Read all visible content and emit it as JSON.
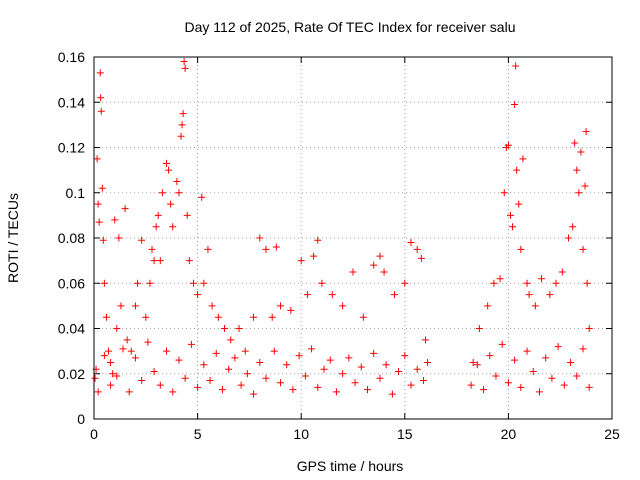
{
  "chart_data": {
    "type": "scatter",
    "title": "Day 112 of 2025, Rate Of TEC Index for receiver salu",
    "xlabel": "GPS time / hours",
    "ylabel": "ROTI / TECUs",
    "xlim": [
      0,
      25
    ],
    "ylim": [
      0,
      0.16
    ],
    "xticks": [
      0,
      5,
      10,
      15,
      20,
      25
    ],
    "xtick_labels": [
      "0",
      "5",
      "10",
      "15",
      "20",
      "25"
    ],
    "yticks": [
      0,
      0.02,
      0.04,
      0.06,
      0.08,
      0.1,
      0.12,
      0.14,
      0.16
    ],
    "ytick_labels": [
      "0",
      "0.02",
      "0.04",
      "0.06",
      "0.08",
      "0.1",
      "0.12",
      "0.14",
      "0.16"
    ],
    "grid": true,
    "marker": "plus",
    "color": "#ff0000",
    "series": [
      {
        "name": "ROTI",
        "points": [
          [
            0.05,
            0.018
          ],
          [
            0.1,
            0.022
          ],
          [
            0.15,
            0.115
          ],
          [
            0.2,
            0.095
          ],
          [
            0.25,
            0.087
          ],
          [
            0.3,
            0.153
          ],
          [
            0.32,
            0.142
          ],
          [
            0.35,
            0.136
          ],
          [
            0.4,
            0.102
          ],
          [
            0.45,
            0.079
          ],
          [
            0.5,
            0.06
          ],
          [
            0.6,
            0.045
          ],
          [
            0.7,
            0.03
          ],
          [
            0.8,
            0.025
          ],
          [
            0.9,
            0.02
          ],
          [
            1.0,
            0.088
          ],
          [
            1.1,
            0.04
          ],
          [
            1.2,
            0.08
          ],
          [
            1.3,
            0.05
          ],
          [
            1.5,
            0.093
          ],
          [
            1.6,
            0.035
          ],
          [
            1.8,
            0.03
          ],
          [
            2.0,
            0.05
          ],
          [
            2.1,
            0.06
          ],
          [
            2.3,
            0.079
          ],
          [
            2.5,
            0.045
          ],
          [
            2.7,
            0.06
          ],
          [
            2.8,
            0.075
          ],
          [
            2.9,
            0.07
          ],
          [
            3.0,
            0.085
          ],
          [
            3.1,
            0.09
          ],
          [
            3.2,
            0.07
          ],
          [
            3.3,
            0.1
          ],
          [
            3.5,
            0.113
          ],
          [
            3.6,
            0.11
          ],
          [
            3.7,
            0.095
          ],
          [
            3.8,
            0.085
          ],
          [
            4.0,
            0.105
          ],
          [
            4.1,
            0.1
          ],
          [
            4.2,
            0.125
          ],
          [
            4.25,
            0.13
          ],
          [
            4.3,
            0.135
          ],
          [
            4.35,
            0.158
          ],
          [
            4.4,
            0.155
          ],
          [
            4.5,
            0.09
          ],
          [
            4.6,
            0.07
          ],
          [
            4.8,
            0.06
          ],
          [
            5.0,
            0.055
          ],
          [
            5.2,
            0.098
          ],
          [
            5.3,
            0.06
          ],
          [
            5.5,
            0.075
          ],
          [
            5.7,
            0.05
          ],
          [
            6.0,
            0.045
          ],
          [
            6.3,
            0.04
          ],
          [
            6.6,
            0.035
          ],
          [
            7.0,
            0.04
          ],
          [
            7.3,
            0.03
          ],
          [
            7.7,
            0.045
          ],
          [
            8.0,
            0.08
          ],
          [
            8.3,
            0.075
          ],
          [
            8.6,
            0.045
          ],
          [
            8.8,
            0.076
          ],
          [
            9.0,
            0.05
          ],
          [
            9.5,
            0.048
          ],
          [
            10.0,
            0.07
          ],
          [
            10.3,
            0.055
          ],
          [
            10.6,
            0.072
          ],
          [
            10.8,
            0.079
          ],
          [
            11.0,
            0.06
          ],
          [
            11.5,
            0.055
          ],
          [
            12.0,
            0.05
          ],
          [
            12.5,
            0.065
          ],
          [
            13.0,
            0.045
          ],
          [
            13.5,
            0.068
          ],
          [
            13.8,
            0.072
          ],
          [
            14.0,
            0.065
          ],
          [
            14.5,
            0.055
          ],
          [
            15.0,
            0.06
          ],
          [
            15.3,
            0.078
          ],
          [
            15.6,
            0.075
          ],
          [
            15.8,
            0.071
          ],
          [
            16.0,
            0.035
          ],
          [
            16.1,
            0.025
          ],
          [
            18.3,
            0.025
          ],
          [
            18.6,
            0.04
          ],
          [
            19.0,
            0.05
          ],
          [
            19.3,
            0.06
          ],
          [
            19.6,
            0.062
          ],
          [
            19.8,
            0.1
          ],
          [
            19.9,
            0.12
          ],
          [
            20.0,
            0.121
          ],
          [
            20.1,
            0.09
          ],
          [
            20.2,
            0.085
          ],
          [
            20.3,
            0.139
          ],
          [
            20.35,
            0.156
          ],
          [
            20.4,
            0.11
          ],
          [
            20.5,
            0.095
          ],
          [
            20.6,
            0.075
          ],
          [
            20.7,
            0.115
          ],
          [
            20.9,
            0.06
          ],
          [
            21.0,
            0.055
          ],
          [
            21.3,
            0.05
          ],
          [
            21.6,
            0.062
          ],
          [
            22.0,
            0.055
          ],
          [
            22.3,
            0.06
          ],
          [
            22.6,
            0.065
          ],
          [
            22.9,
            0.08
          ],
          [
            23.1,
            0.085
          ],
          [
            23.2,
            0.122
          ],
          [
            23.3,
            0.11
          ],
          [
            23.4,
            0.1
          ],
          [
            23.5,
            0.118
          ],
          [
            23.6,
            0.075
          ],
          [
            23.7,
            0.103
          ],
          [
            23.75,
            0.127
          ],
          [
            23.8,
            0.06
          ],
          [
            23.9,
            0.04
          ],
          [
            0.2,
            0.012
          ],
          [
            0.5,
            0.028
          ],
          [
            0.8,
            0.015
          ],
          [
            1.1,
            0.019
          ],
          [
            1.4,
            0.031
          ],
          [
            1.7,
            0.012
          ],
          [
            2.0,
            0.027
          ],
          [
            2.3,
            0.017
          ],
          [
            2.6,
            0.034
          ],
          [
            2.9,
            0.021
          ],
          [
            3.2,
            0.015
          ],
          [
            3.5,
            0.03
          ],
          [
            3.8,
            0.012
          ],
          [
            4.1,
            0.026
          ],
          [
            4.4,
            0.018
          ],
          [
            4.7,
            0.033
          ],
          [
            5.0,
            0.014
          ],
          [
            5.3,
            0.024
          ],
          [
            5.6,
            0.017
          ],
          [
            5.9,
            0.029
          ],
          [
            6.2,
            0.013
          ],
          [
            6.5,
            0.022
          ],
          [
            6.8,
            0.027
          ],
          [
            7.1,
            0.015
          ],
          [
            7.4,
            0.02
          ],
          [
            7.7,
            0.011
          ],
          [
            8.0,
            0.025
          ],
          [
            8.3,
            0.018
          ],
          [
            8.7,
            0.03
          ],
          [
            9.0,
            0.016
          ],
          [
            9.3,
            0.024
          ],
          [
            9.6,
            0.013
          ],
          [
            9.9,
            0.028
          ],
          [
            10.2,
            0.019
          ],
          [
            10.5,
            0.031
          ],
          [
            10.8,
            0.014
          ],
          [
            11.1,
            0.022
          ],
          [
            11.4,
            0.026
          ],
          [
            11.7,
            0.012
          ],
          [
            12.0,
            0.02
          ],
          [
            12.3,
            0.027
          ],
          [
            12.6,
            0.016
          ],
          [
            12.9,
            0.023
          ],
          [
            13.2,
            0.013
          ],
          [
            13.5,
            0.029
          ],
          [
            13.8,
            0.018
          ],
          [
            14.1,
            0.024
          ],
          [
            14.4,
            0.011
          ],
          [
            14.7,
            0.021
          ],
          [
            15.0,
            0.028
          ],
          [
            15.3,
            0.015
          ],
          [
            15.6,
            0.022
          ],
          [
            15.9,
            0.017
          ],
          [
            18.2,
            0.015
          ],
          [
            18.5,
            0.024
          ],
          [
            18.8,
            0.013
          ],
          [
            19.1,
            0.028
          ],
          [
            19.4,
            0.019
          ],
          [
            19.7,
            0.033
          ],
          [
            20.0,
            0.016
          ],
          [
            20.3,
            0.026
          ],
          [
            20.6,
            0.014
          ],
          [
            20.9,
            0.03
          ],
          [
            21.2,
            0.021
          ],
          [
            21.5,
            0.012
          ],
          [
            21.8,
            0.027
          ],
          [
            22.1,
            0.018
          ],
          [
            22.4,
            0.032
          ],
          [
            22.7,
            0.015
          ],
          [
            23.0,
            0.025
          ],
          [
            23.3,
            0.019
          ],
          [
            23.6,
            0.031
          ],
          [
            23.9,
            0.014
          ]
        ]
      }
    ]
  }
}
